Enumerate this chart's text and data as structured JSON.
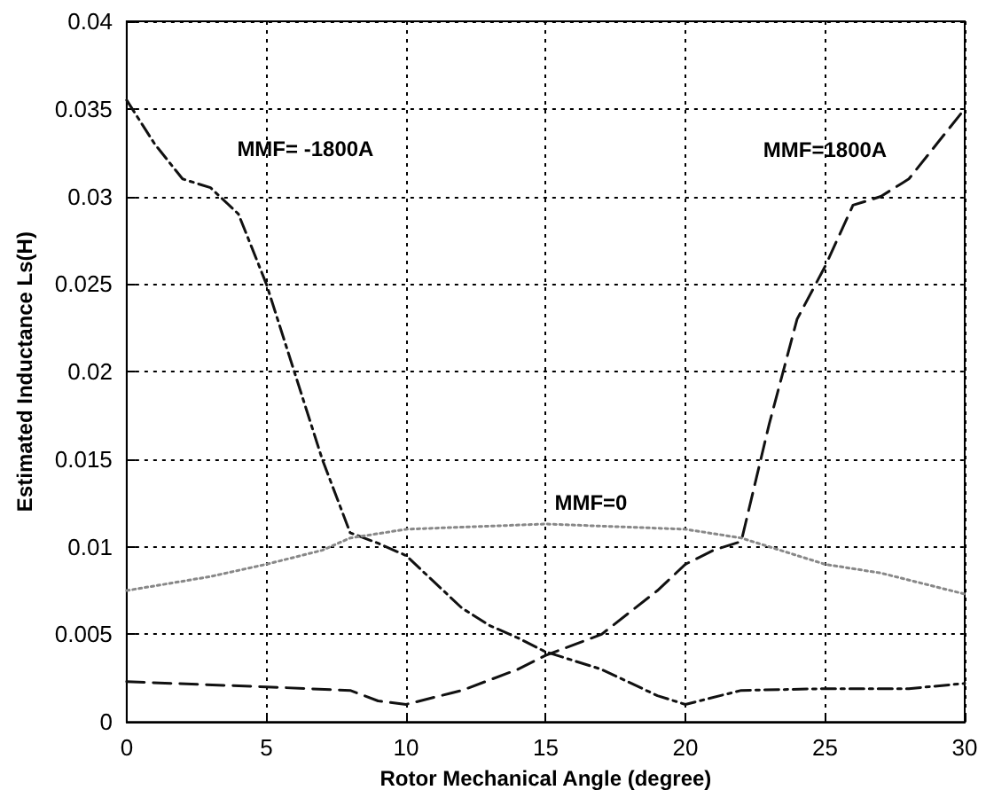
{
  "chart_data": {
    "type": "line",
    "xlabel": "Rotor Mechanical Angle (degree)",
    "ylabel": "Estimated Inductance Ls(H)",
    "xlim": [
      0,
      30
    ],
    "xticks": [
      0,
      5,
      10,
      15,
      20,
      25,
      30
    ],
    "ylim": [
      0,
      0.04
    ],
    "yticks": [
      0,
      0.005,
      0.01,
      0.015,
      0.02,
      0.025,
      0.03,
      0.035,
      0.04
    ],
    "grid": true,
    "legend": false,
    "marker": "none",
    "series": [
      {
        "name": "MMF= -1800A",
        "color": "#111111",
        "line_style": "dashdot",
        "x": [
          0,
          1,
          2,
          3,
          4,
          5,
          6,
          7,
          8,
          9,
          10,
          11,
          12,
          13,
          14,
          15,
          17,
          19,
          20,
          22,
          25,
          28,
          30
        ],
        "values": [
          0.0355,
          0.033,
          0.031,
          0.0305,
          0.029,
          0.025,
          0.02,
          0.015,
          0.0108,
          0.0102,
          0.0095,
          0.008,
          0.0065,
          0.0055,
          0.0048,
          0.004,
          0.003,
          0.0015,
          0.001,
          0.0018,
          0.0019,
          0.0019,
          0.0022
        ]
      },
      {
        "name": "MMF=1800A",
        "color": "#111111",
        "line_style": "dashed",
        "x": [
          0,
          5,
          8,
          9,
          10,
          12,
          14,
          15,
          17,
          19,
          20,
          21,
          22,
          23,
          24,
          25,
          26,
          27,
          28,
          29,
          30
        ],
        "values": [
          0.0023,
          0.002,
          0.0018,
          0.0012,
          0.001,
          0.0018,
          0.003,
          0.0038,
          0.005,
          0.0075,
          0.009,
          0.0098,
          0.0103,
          0.017,
          0.023,
          0.026,
          0.0295,
          0.03,
          0.031,
          0.033,
          0.035
        ]
      },
      {
        "name": "MMF=0",
        "color": "#888888",
        "line_style": "dotted",
        "x": [
          0,
          3,
          5,
          7,
          8,
          10,
          15,
          20,
          22,
          25,
          27,
          30
        ],
        "values": [
          0.0075,
          0.0083,
          0.009,
          0.0098,
          0.0105,
          0.011,
          0.0113,
          0.011,
          0.0105,
          0.009,
          0.0085,
          0.0073
        ]
      }
    ]
  }
}
